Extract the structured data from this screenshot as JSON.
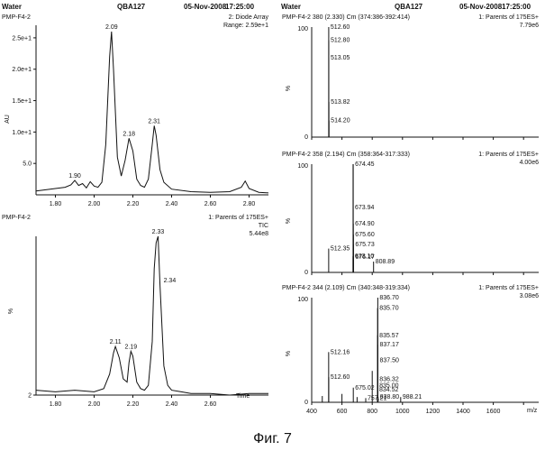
{
  "caption": "Фиг. 7",
  "chart_data": [
    {
      "type": "line",
      "header": {
        "left": "Water",
        "center": "QBA127",
        "date": "05-Nov-2008",
        "time": "17:25:00"
      },
      "sample": "PMP-F4-2",
      "info": [
        "2: Diode Array",
        "Range: 2.59e+1"
      ],
      "ylabel": "AU",
      "yticks": [
        "2.5e+1",
        "2.0e+1",
        "1.5e+1",
        "1.0e+1",
        "5.0"
      ],
      "ytick_values": [
        25,
        20,
        15,
        10,
        5
      ],
      "ylim": [
        0,
        27
      ],
      "xlim": [
        1.7,
        2.9
      ],
      "xticks": [
        "1.80",
        "2.00",
        "2.20",
        "2.40",
        "2.60",
        "2.80"
      ],
      "series": [
        {
          "x": [
            1.7,
            1.75,
            1.8,
            1.85,
            1.88,
            1.9,
            1.92,
            1.94,
            1.96,
            1.98,
            2.0,
            2.02,
            2.04,
            2.06,
            2.08,
            2.09,
            2.1,
            2.12,
            2.14,
            2.16,
            2.18,
            2.2,
            2.22,
            2.24,
            2.26,
            2.28,
            2.3,
            2.31,
            2.32,
            2.34,
            2.36,
            2.4,
            2.5,
            2.6,
            2.7,
            2.76,
            2.78,
            2.8,
            2.85,
            2.9
          ],
          "y": [
            0.6,
            0.8,
            1.0,
            1.2,
            1.6,
            2.3,
            1.5,
            1.8,
            1.1,
            2.1,
            1.4,
            1.2,
            2.0,
            8.0,
            22.0,
            26.0,
            20.0,
            6.0,
            3.0,
            5.5,
            9.0,
            7.0,
            2.5,
            1.5,
            1.2,
            2.5,
            8.0,
            11.0,
            9.5,
            4.0,
            2.0,
            0.9,
            0.5,
            0.4,
            0.5,
            1.2,
            2.2,
            1.0,
            0.4,
            0.3
          ]
        }
      ],
      "peak_labels": [
        {
          "x": 2.09,
          "y": 26.0,
          "label": "2.09"
        },
        {
          "x": 2.18,
          "y": 9.0,
          "label": "2.18"
        },
        {
          "x": 2.31,
          "y": 11.0,
          "label": "2.31"
        },
        {
          "x": 1.9,
          "y": 2.3,
          "label": "1.90"
        }
      ]
    },
    {
      "type": "line",
      "sample": "PMP-F4-2",
      "info": [
        "1: Parents of 175ES+",
        "TIC",
        "5.44e8"
      ],
      "ylabel": "%",
      "yticks": [
        "2"
      ],
      "ytick_values": [
        2
      ],
      "ylim": [
        2,
        100
      ],
      "xlim": [
        1.7,
        2.9
      ],
      "xticks": [
        "1.80",
        "2.00",
        "2.20",
        "2.40",
        "2.60"
      ],
      "xlabel": "Time",
      "series": [
        {
          "x": [
            1.7,
            1.8,
            1.9,
            2.0,
            2.05,
            2.08,
            2.1,
            2.11,
            2.13,
            2.15,
            2.17,
            2.18,
            2.19,
            2.2,
            2.22,
            2.24,
            2.26,
            2.28,
            2.3,
            2.31,
            2.32,
            2.33,
            2.34,
            2.36,
            2.38,
            2.4,
            2.45,
            2.5,
            2.6,
            2.7,
            2.8,
            2.9
          ],
          "y": [
            5,
            4,
            5,
            4,
            6,
            15,
            28,
            32,
            25,
            12,
            10,
            22,
            29,
            26,
            10,
            6,
            5,
            8,
            35,
            80,
            96,
            100,
            70,
            20,
            8,
            5,
            4,
            3,
            3,
            2,
            3,
            3
          ]
        }
      ],
      "peak_labels": [
        {
          "x": 2.11,
          "y": 32,
          "label": "2.11"
        },
        {
          "x": 2.19,
          "y": 29,
          "label": "2.19"
        },
        {
          "x": 2.33,
          "y": 100,
          "label": "2.33"
        },
        {
          "x": 2.34,
          "y": 70,
          "label": "2.34"
        }
      ]
    },
    {
      "type": "bar",
      "header": {
        "left": "Water",
        "center": "QBA127",
        "date": "05-Nov-2008",
        "time": "17:25:00"
      },
      "title": "PMP-F4-2 380 (2.330) Cm (374:386-392:414)",
      "info": [
        "1: Parents of 175ES+",
        "7.79e6"
      ],
      "ylabel": "%",
      "xlim": [
        400,
        1900
      ],
      "peaks": [
        {
          "x": 512.6,
          "y": 100
        },
        {
          "x": 512.8,
          "y": 88
        },
        {
          "x": 513.05,
          "y": 72
        },
        {
          "x": 513.82,
          "y": 32
        },
        {
          "x": 514.2,
          "y": 15
        }
      ],
      "labels": [
        {
          "x": 512.6,
          "y": 100,
          "text": "512.60"
        },
        {
          "x": 512.8,
          "y": 88,
          "text": "512.80"
        },
        {
          "x": 513.05,
          "y": 72,
          "text": "513.05"
        },
        {
          "x": 513.82,
          "y": 32,
          "text": "513.82"
        },
        {
          "x": 514.2,
          "y": 15,
          "text": "514.20"
        }
      ]
    },
    {
      "type": "bar",
      "title": "PMP-F4-2 358 (2.194) Cm (358:364-317:333)",
      "info": [
        "1: Parents of 175ES+",
        "4.00e6"
      ],
      "ylabel": "%",
      "xlim": [
        400,
        1900
      ],
      "peaks": [
        {
          "x": 512.35,
          "y": 22
        },
        {
          "x": 673.1,
          "y": 15
        },
        {
          "x": 673.5,
          "y": 100
        },
        {
          "x": 673.94,
          "y": 60
        },
        {
          "x": 674.45,
          "y": 100
        },
        {
          "x": 674.9,
          "y": 45
        },
        {
          "x": 675.6,
          "y": 35
        },
        {
          "x": 675.73,
          "y": 26
        },
        {
          "x": 676.17,
          "y": 14
        },
        {
          "x": 808.89,
          "y": 10
        }
      ],
      "labels": [
        {
          "x": 674.45,
          "y": 100,
          "text": "674.45"
        },
        {
          "x": 673.94,
          "y": 60,
          "text": "673.94"
        },
        {
          "x": 674.9,
          "y": 45,
          "text": "674.90"
        },
        {
          "x": 675.6,
          "y": 35,
          "text": "675.60"
        },
        {
          "x": 675.73,
          "y": 26,
          "text": "675.73"
        },
        {
          "x": 512.35,
          "y": 22,
          "text": "512.35"
        },
        {
          "x": 673.1,
          "y": 15,
          "text": "673.10"
        },
        {
          "x": 676.17,
          "y": 14,
          "text": "676.17"
        },
        {
          "x": 808.89,
          "y": 10,
          "text": "808.89"
        }
      ]
    },
    {
      "type": "bar",
      "title": "PMP-F4-2 344 (2.109) Cm (340:348-319:334)",
      "info": [
        "1: Parents of 175ES+",
        "3.08e6"
      ],
      "ylabel": "%",
      "xlim": [
        400,
        1900
      ],
      "xticks": [
        "400",
        "600",
        "800",
        "1000",
        "1200",
        "1400",
        "1600"
      ],
      "xtick_values": [
        400,
        600,
        800,
        1000,
        1200,
        1400,
        1600
      ],
      "xlabel": "m/z",
      "peaks": [
        {
          "x": 470,
          "y": 6
        },
        {
          "x": 512.16,
          "y": 48
        },
        {
          "x": 512.6,
          "y": 24
        },
        {
          "x": 600,
          "y": 8
        },
        {
          "x": 675.02,
          "y": 14
        },
        {
          "x": 700,
          "y": 5
        },
        {
          "x": 757.21,
          "y": 4
        },
        {
          "x": 800,
          "y": 30
        },
        {
          "x": 835.0,
          "y": 16
        },
        {
          "x": 835.57,
          "y": 64
        },
        {
          "x": 835.7,
          "y": 90
        },
        {
          "x": 836.32,
          "y": 22
        },
        {
          "x": 836.7,
          "y": 100
        },
        {
          "x": 837.17,
          "y": 55
        },
        {
          "x": 837.5,
          "y": 40
        },
        {
          "x": 834.52,
          "y": 12
        },
        {
          "x": 838.8,
          "y": 5
        },
        {
          "x": 988.21,
          "y": 5
        }
      ],
      "labels": [
        {
          "x": 836.7,
          "y": 100,
          "text": "836.70"
        },
        {
          "x": 835.7,
          "y": 90,
          "text": "835.70"
        },
        {
          "x": 835.57,
          "y": 64,
          "text": "835.57"
        },
        {
          "x": 837.17,
          "y": 55,
          "text": "837.17"
        },
        {
          "x": 512.16,
          "y": 48,
          "text": "512.16"
        },
        {
          "x": 837.5,
          "y": 40,
          "text": "837.50"
        },
        {
          "x": 512.6,
          "y": 24,
          "text": "512.60"
        },
        {
          "x": 836.32,
          "y": 22,
          "text": "836.32"
        },
        {
          "x": 835.0,
          "y": 16,
          "text": "835.00"
        },
        {
          "x": 675.02,
          "y": 14,
          "text": "675.02"
        },
        {
          "x": 834.52,
          "y": 12,
          "text": "834.52"
        },
        {
          "x": 757.21,
          "y": 4,
          "text": "757.21"
        },
        {
          "x": 838.8,
          "y": 5,
          "text": "838.80"
        },
        {
          "x": 988.21,
          "y": 5,
          "text": "988.21"
        }
      ]
    }
  ]
}
